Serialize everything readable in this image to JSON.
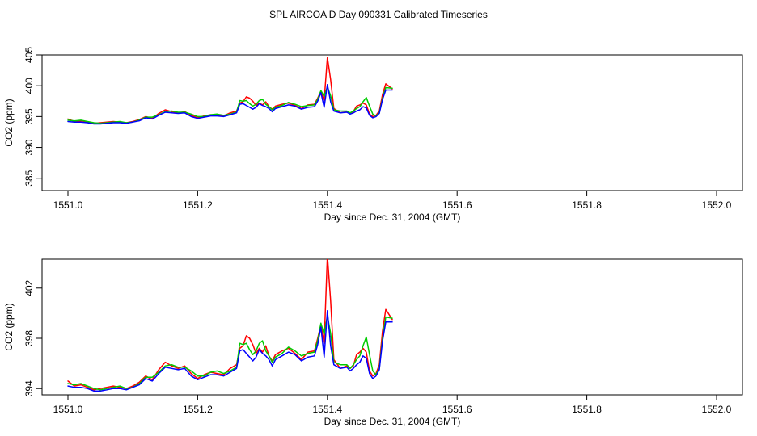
{
  "page": {
    "title": "SPL AIRCOA D  Day 090331  Calibrated Timeseries"
  },
  "colors": {
    "series_1": "#ff0000",
    "series_2": "#00cc00",
    "series_3": "#0000ff",
    "axis": "#000000"
  },
  "chart_data": [
    {
      "type": "line",
      "title": "",
      "xlabel": "Day since Dec. 31, 2004 (GMT)",
      "ylabel": "CO2 (ppm)",
      "xlim": [
        1551.0,
        1552.0
      ],
      "ylim": [
        383,
        405
      ],
      "xticks": [
        "1551.0",
        "1551.2",
        "1551.4",
        "1551.6",
        "1551.8",
        "1552.0"
      ],
      "yticks": [
        "385",
        "390",
        "395",
        "400",
        "405"
      ],
      "x": [
        1551.0,
        1551.01,
        1551.02,
        1551.03,
        1551.04,
        1551.05,
        1551.06,
        1551.07,
        1551.08,
        1551.09,
        1551.1,
        1551.11,
        1551.12,
        1551.13,
        1551.14,
        1551.15,
        1551.16,
        1551.17,
        1551.18,
        1551.19,
        1551.2,
        1551.21,
        1551.22,
        1551.23,
        1551.24,
        1551.25,
        1551.26,
        1551.265,
        1551.27,
        1551.275,
        1551.28,
        1551.285,
        1551.29,
        1551.295,
        1551.3,
        1551.305,
        1551.31,
        1551.315,
        1551.32,
        1551.33,
        1551.34,
        1551.35,
        1551.36,
        1551.37,
        1551.38,
        1551.385,
        1551.39,
        1551.395,
        1551.4,
        1551.405,
        1551.41,
        1551.42,
        1551.43,
        1551.435,
        1551.44,
        1551.445,
        1551.45,
        1551.455,
        1551.46,
        1551.465,
        1551.47,
        1551.475,
        1551.48,
        1551.485,
        1551.49,
        1551.5
      ],
      "series": [
        {
          "color": "red",
          "values": [
            394.6,
            394.2,
            394.3,
            394.1,
            393.9,
            394.0,
            394.1,
            394.2,
            394.1,
            394.0,
            394.2,
            394.5,
            395.0,
            394.7,
            395.5,
            396.1,
            395.8,
            395.6,
            395.8,
            395.2,
            394.8,
            395.1,
            395.3,
            395.2,
            395.1,
            395.6,
            395.9,
            397.2,
            397.4,
            398.2,
            398.0,
            397.5,
            396.8,
            397.2,
            396.9,
            397.4,
            396.6,
            396.2,
            396.7,
            397.0,
            397.2,
            396.8,
            396.3,
            396.9,
            397.0,
            398.0,
            399.1,
            397.6,
            404.6,
            401.0,
            396.3,
            395.6,
            395.8,
            395.6,
            395.8,
            396.7,
            396.9,
            397.2,
            396.9,
            395.4,
            395.0,
            395.2,
            395.9,
            398.6,
            400.3,
            399.5
          ]
        },
        {
          "color": "green",
          "values": [
            394.4,
            394.3,
            394.4,
            394.2,
            394.0,
            393.9,
            394.0,
            394.1,
            394.2,
            394.0,
            394.1,
            394.4,
            394.9,
            394.9,
            395.3,
            395.8,
            395.9,
            395.7,
            395.7,
            395.4,
            395.0,
            395.0,
            395.3,
            395.4,
            395.2,
            395.4,
            395.7,
            397.6,
            397.5,
            397.6,
            397.1,
            396.7,
            397.0,
            397.6,
            397.8,
            397.0,
            396.6,
            396.1,
            396.5,
            396.8,
            397.3,
            397.0,
            396.6,
            396.8,
            396.9,
            397.8,
            399.2,
            398.3,
            399.8,
            398.4,
            396.1,
            395.9,
            395.9,
            395.6,
            395.9,
            396.3,
            396.6,
            397.4,
            398.1,
            396.7,
            395.4,
            395.1,
            395.6,
            398.0,
            399.7,
            399.6
          ]
        },
        {
          "color": "blue",
          "values": [
            394.2,
            394.1,
            394.1,
            394.0,
            393.8,
            393.8,
            393.9,
            394.0,
            394.0,
            393.9,
            394.1,
            394.3,
            394.8,
            394.6,
            395.2,
            395.7,
            395.6,
            395.5,
            395.6,
            395.0,
            394.7,
            394.9,
            395.1,
            395.1,
            395.0,
            395.3,
            395.6,
            397.0,
            397.1,
            396.8,
            396.5,
            396.2,
            396.5,
            397.1,
            396.8,
            396.6,
            396.3,
            395.8,
            396.3,
            396.6,
            396.9,
            396.7,
            396.2,
            396.5,
            396.6,
            397.5,
            398.9,
            396.5,
            400.2,
            397.4,
            395.9,
            395.6,
            395.7,
            395.4,
            395.6,
            395.9,
            396.1,
            396.6,
            396.4,
            395.2,
            394.8,
            395.0,
            395.5,
            397.8,
            399.3,
            399.3
          ]
        }
      ]
    },
    {
      "type": "line",
      "title": "",
      "xlabel": "Day since Dec. 31, 2004 (GMT)",
      "ylabel": "CO2 (ppm)",
      "xlim": [
        1551.0,
        1552.0
      ],
      "ylim": [
        393.5,
        404.3
      ],
      "xticks": [
        "1551.0",
        "1551.2",
        "1551.4",
        "1551.6",
        "1551.8",
        "1552.0"
      ],
      "yticks": [
        "394",
        "398",
        "402"
      ],
      "x": [
        1551.0,
        1551.01,
        1551.02,
        1551.03,
        1551.04,
        1551.05,
        1551.06,
        1551.07,
        1551.08,
        1551.09,
        1551.1,
        1551.11,
        1551.12,
        1551.13,
        1551.14,
        1551.15,
        1551.16,
        1551.17,
        1551.18,
        1551.19,
        1551.2,
        1551.21,
        1551.22,
        1551.23,
        1551.24,
        1551.25,
        1551.26,
        1551.265,
        1551.27,
        1551.275,
        1551.28,
        1551.285,
        1551.29,
        1551.295,
        1551.3,
        1551.305,
        1551.31,
        1551.315,
        1551.32,
        1551.33,
        1551.34,
        1551.35,
        1551.36,
        1551.37,
        1551.38,
        1551.385,
        1551.39,
        1551.395,
        1551.4,
        1551.405,
        1551.41,
        1551.42,
        1551.43,
        1551.435,
        1551.44,
        1551.445,
        1551.45,
        1551.455,
        1551.46,
        1551.465,
        1551.47,
        1551.475,
        1551.48,
        1551.485,
        1551.49,
        1551.5
      ],
      "series": [
        {
          "color": "red",
          "values": [
            394.6,
            394.2,
            394.3,
            394.1,
            393.9,
            394.0,
            394.1,
            394.2,
            394.1,
            394.0,
            394.2,
            394.5,
            395.0,
            394.7,
            395.5,
            396.1,
            395.8,
            395.6,
            395.8,
            395.2,
            394.8,
            395.1,
            395.3,
            395.2,
            395.1,
            395.6,
            395.9,
            397.2,
            397.4,
            398.2,
            398.0,
            397.5,
            396.8,
            397.2,
            396.9,
            397.4,
            396.6,
            396.2,
            396.7,
            397.0,
            397.2,
            396.8,
            396.3,
            396.9,
            397.0,
            398.0,
            399.1,
            397.6,
            404.6,
            401.0,
            396.3,
            395.6,
            395.8,
            395.6,
            395.8,
            396.7,
            396.9,
            397.2,
            396.9,
            395.4,
            395.0,
            395.2,
            395.9,
            398.6,
            400.3,
            399.5
          ]
        },
        {
          "color": "green",
          "values": [
            394.4,
            394.3,
            394.4,
            394.2,
            394.0,
            393.9,
            394.0,
            394.1,
            394.2,
            394.0,
            394.1,
            394.4,
            394.9,
            394.9,
            395.3,
            395.8,
            395.9,
            395.7,
            395.7,
            395.4,
            395.0,
            395.0,
            395.3,
            395.4,
            395.2,
            395.4,
            395.7,
            397.6,
            397.5,
            397.6,
            397.1,
            396.7,
            397.0,
            397.6,
            397.8,
            397.0,
            396.6,
            396.1,
            396.5,
            396.8,
            397.3,
            397.0,
            396.6,
            396.8,
            396.9,
            397.8,
            399.2,
            398.3,
            399.8,
            398.4,
            396.1,
            395.9,
            395.9,
            395.6,
            395.9,
            396.3,
            396.6,
            397.4,
            398.1,
            396.7,
            395.4,
            395.1,
            395.6,
            398.0,
            399.7,
            399.6
          ]
        },
        {
          "color": "blue",
          "values": [
            394.2,
            394.1,
            394.1,
            394.0,
            393.8,
            393.8,
            393.9,
            394.0,
            394.0,
            393.9,
            394.1,
            394.3,
            394.8,
            394.6,
            395.2,
            395.7,
            395.6,
            395.5,
            395.6,
            395.0,
            394.7,
            394.9,
            395.1,
            395.1,
            395.0,
            395.3,
            395.6,
            397.0,
            397.1,
            396.8,
            396.5,
            396.2,
            396.5,
            397.1,
            396.8,
            396.6,
            396.3,
            395.8,
            396.3,
            396.6,
            396.9,
            396.7,
            396.2,
            396.5,
            396.6,
            397.5,
            398.9,
            396.5,
            400.2,
            397.4,
            395.9,
            395.6,
            395.7,
            395.4,
            395.6,
            395.9,
            396.1,
            396.6,
            396.4,
            395.2,
            394.8,
            395.0,
            395.5,
            397.8,
            399.3,
            399.3
          ]
        }
      ]
    }
  ]
}
